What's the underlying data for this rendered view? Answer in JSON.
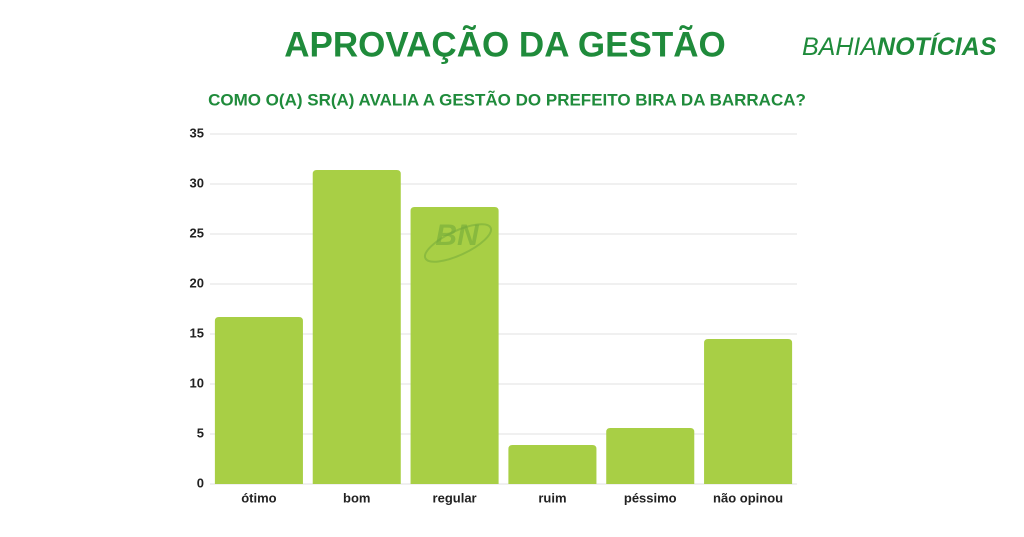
{
  "chart_data": {
    "type": "bar",
    "title": "APROVAÇÃO DA GESTÃO",
    "subtitle": "COMO O(A) SR(A) AVALIA A GESTÃO DO PREFEITO BIRA DA BARRACA?",
    "brand": [
      "BAHIA",
      "NOTÍCIAS"
    ],
    "watermark": "BN",
    "categories": [
      "ótimo",
      "bom",
      "regular",
      "ruim",
      "péssimo",
      "não opinou"
    ],
    "values": [
      16.7,
      31.4,
      27.7,
      3.9,
      5.6,
      14.5
    ],
    "color": "#a8cf45",
    "ylim": [
      0,
      35
    ],
    "yticks": [
      0,
      5,
      10,
      15,
      20,
      25,
      30,
      35
    ],
    "grid": true
  }
}
